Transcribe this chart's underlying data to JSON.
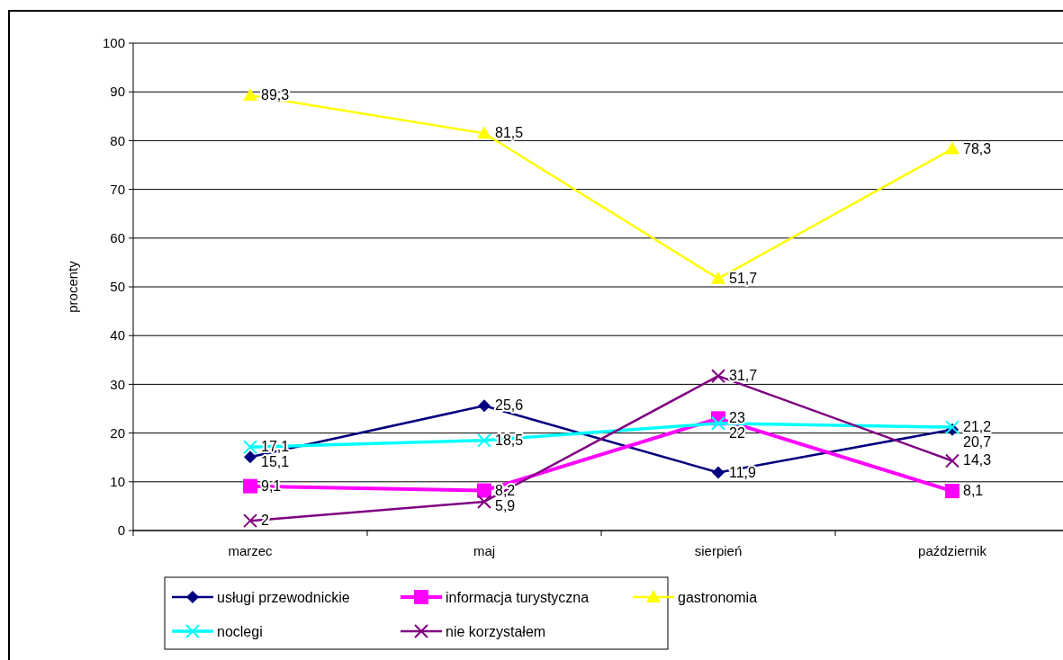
{
  "chart_data": {
    "type": "line",
    "ylabel": "procenty",
    "categories": [
      "marzec",
      "maj",
      "sierpień",
      "październik"
    ],
    "ylim": [
      0,
      100
    ],
    "yticks": [
      0,
      10,
      20,
      30,
      40,
      50,
      60,
      70,
      80,
      90,
      100
    ],
    "grid": "y",
    "legend": "bottom",
    "series": [
      {
        "name": "usługi przewodnickie",
        "color": "#000080",
        "marker": "diamond",
        "values": [
          15.1,
          25.6,
          11.9,
          20.7
        ],
        "value_labels": [
          "15,1",
          "25,6",
          "11,9",
          "20,7"
        ]
      },
      {
        "name": "informacja turystyczna",
        "color": "#ff00ff",
        "marker": "square",
        "values": [
          9.1,
          8.2,
          23,
          8.1
        ],
        "value_labels": [
          "9,1",
          "8,2",
          "23",
          "8,1"
        ]
      },
      {
        "name": "gastronomia",
        "color": "#ffff00",
        "marker": "triangle",
        "values": [
          89.3,
          81.5,
          51.7,
          78.3
        ],
        "value_labels": [
          "89,3",
          "81,5",
          "51,7",
          "78,3"
        ]
      },
      {
        "name": "noclegi",
        "color": "#00ffff",
        "marker": "cross",
        "values": [
          17.1,
          18.5,
          22,
          21.2
        ],
        "value_labels": [
          "17,1",
          "18,5",
          "22",
          "21,2"
        ]
      },
      {
        "name": "nie korzystałem",
        "color": "#800080",
        "marker": "cross",
        "values": [
          2,
          5.9,
          31.7,
          14.3
        ],
        "value_labels": [
          "2",
          "5,9",
          "31,7",
          "14,3"
        ]
      }
    ]
  }
}
